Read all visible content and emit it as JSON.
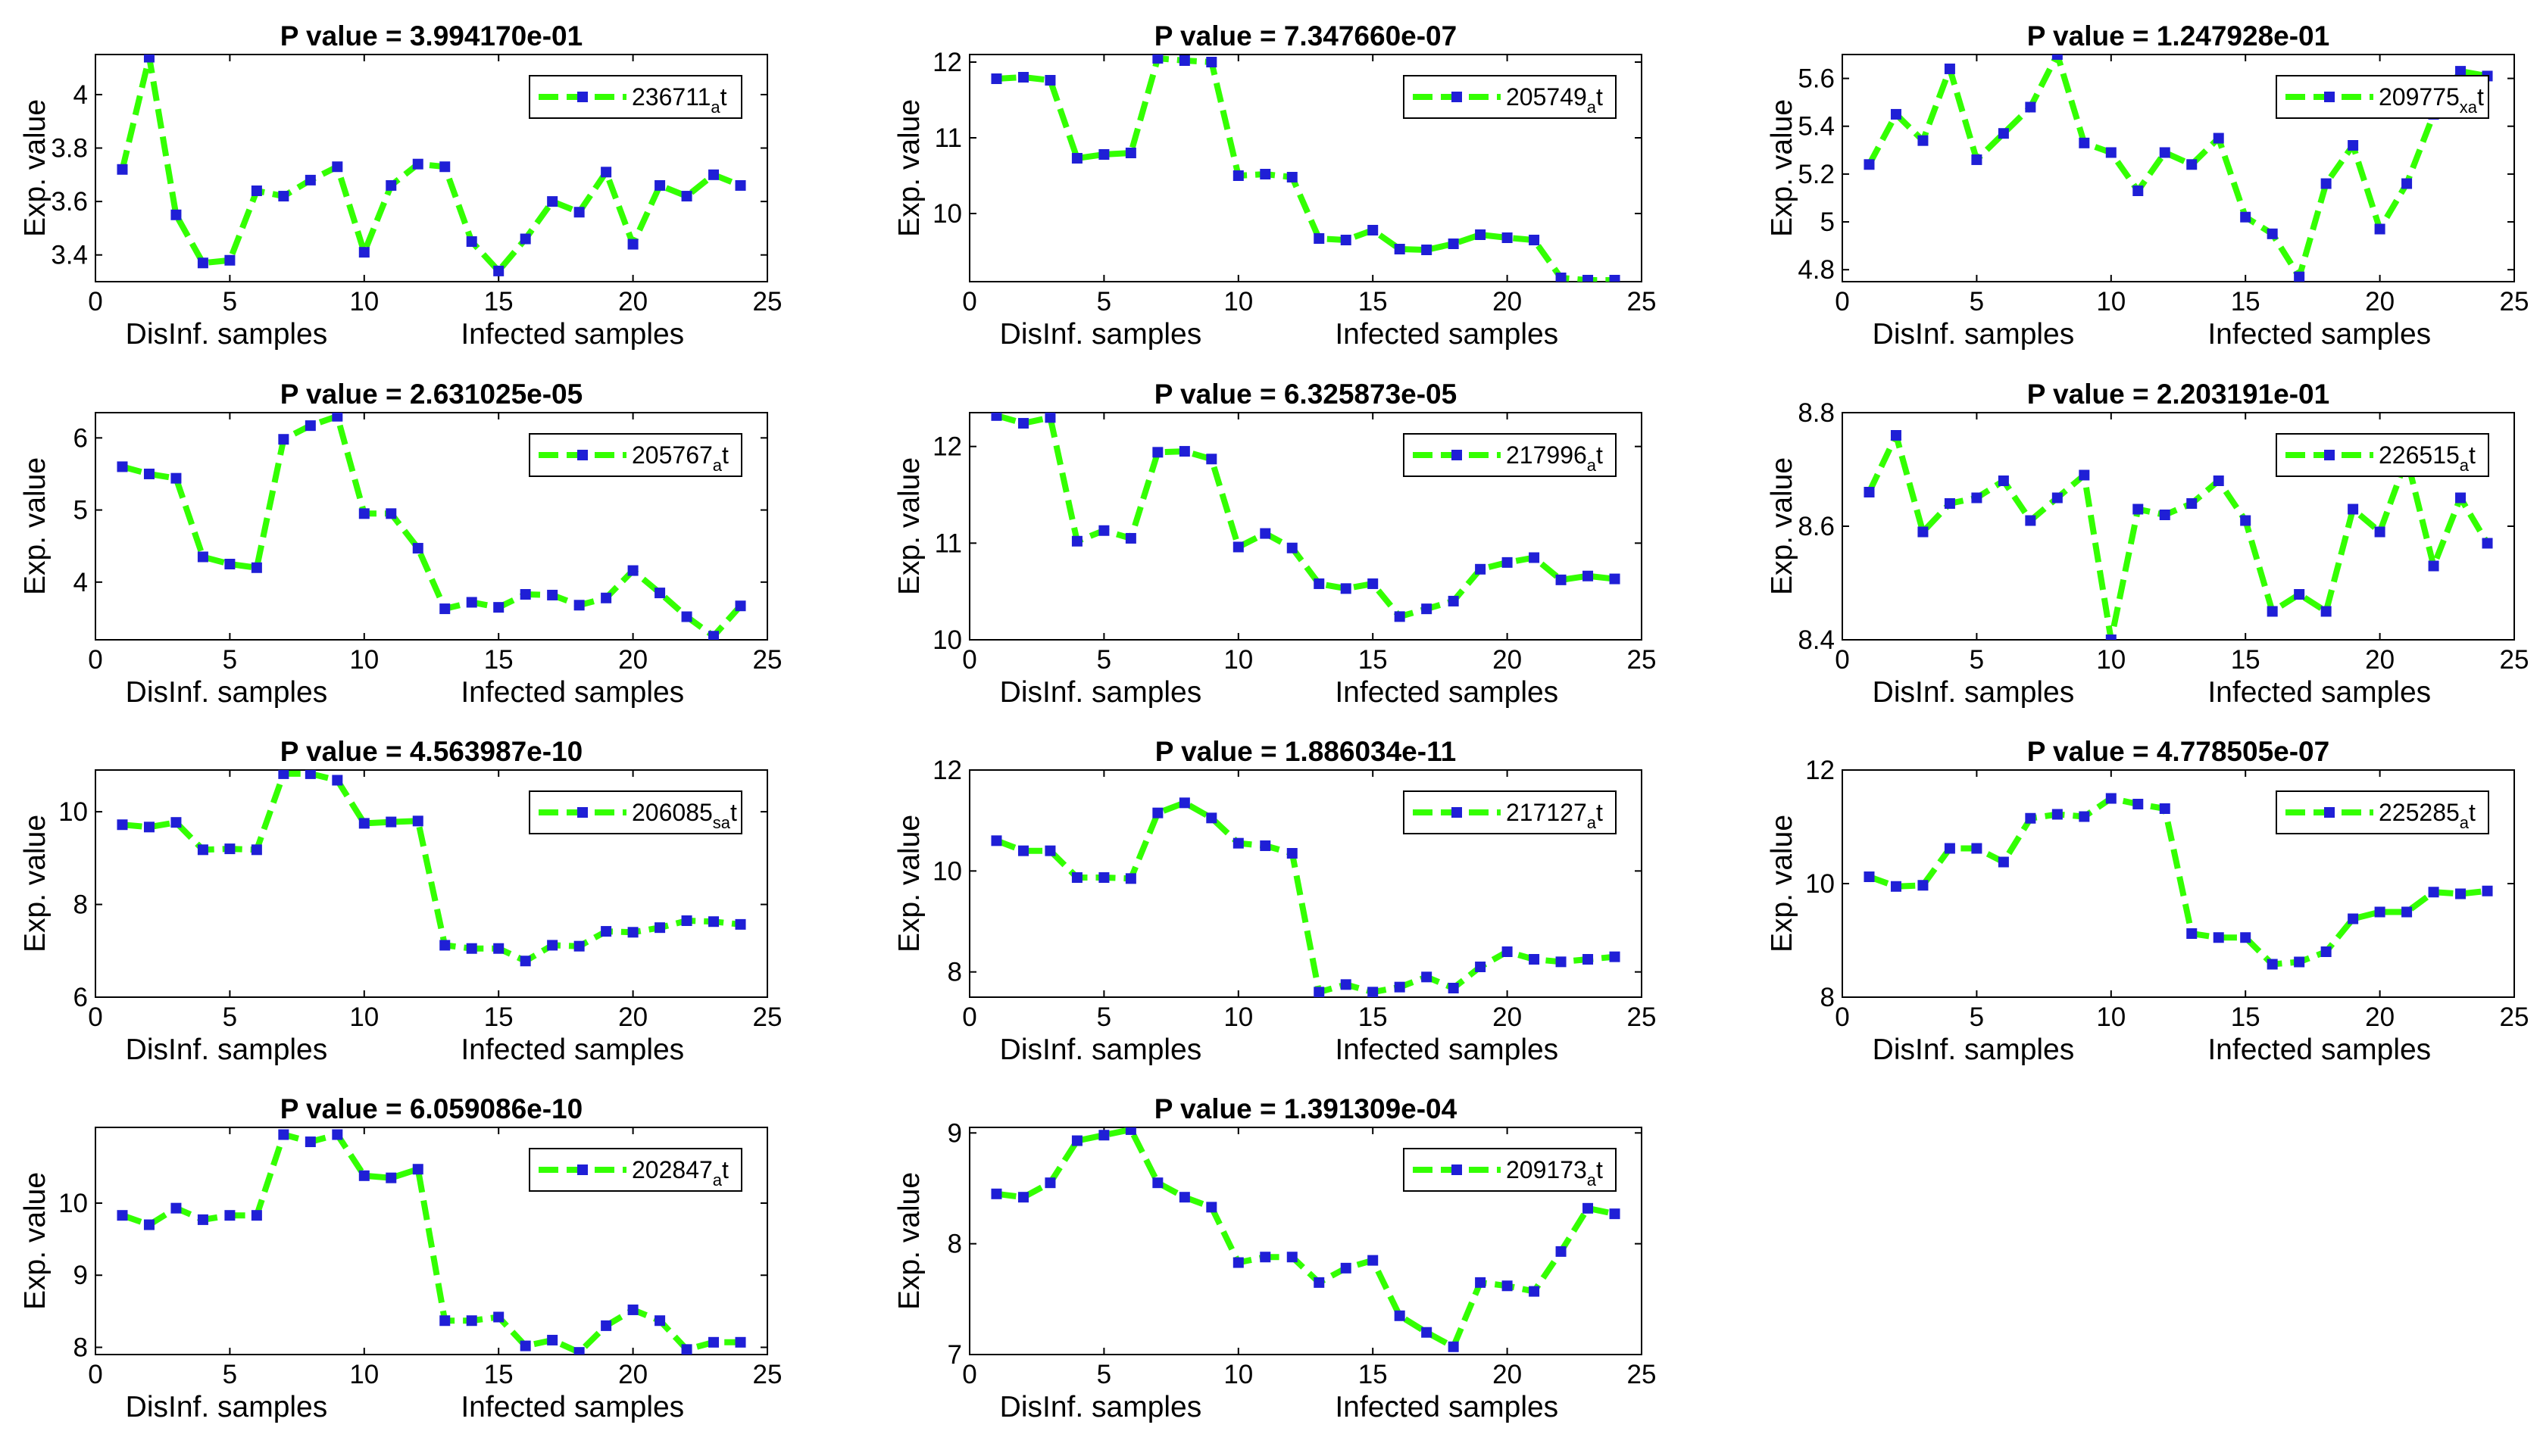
{
  "chart_data": [
    {
      "type": "line",
      "title": "P value = 3.994170e-01",
      "ylabel": "Exp. value",
      "xlabel_left": "DisInf. samples",
      "xlabel_right": "Infected samples",
      "xlim": [
        0,
        25
      ],
      "xticks": [
        "0",
        "5",
        "10",
        "15",
        "20",
        "25"
      ],
      "ylim": [
        3.3,
        4.15
      ],
      "yticks": [
        "3.4",
        "3.6",
        "3.8",
        "4"
      ],
      "legend": {
        "base": "236711",
        "sub": "a",
        "suffix": "t"
      },
      "x": [
        1,
        2,
        3,
        4,
        5,
        6,
        7,
        8,
        9,
        10,
        11,
        12,
        13,
        14,
        15,
        16,
        17,
        18,
        19,
        20,
        21,
        22,
        23,
        24
      ],
      "values": [
        3.72,
        4.14,
        3.55,
        3.37,
        3.38,
        3.64,
        3.62,
        3.68,
        3.73,
        3.41,
        3.66,
        3.74,
        3.73,
        3.45,
        3.34,
        3.46,
        3.6,
        3.56,
        3.71,
        3.44,
        3.66,
        3.62,
        3.7,
        3.66
      ]
    },
    {
      "type": "line",
      "title": "P value = 7.347660e-07",
      "ylabel": "Exp. value",
      "xlabel_left": "DisInf. samples",
      "xlabel_right": "Infected samples",
      "xlim": [
        0,
        25
      ],
      "xticks": [
        "0",
        "5",
        "10",
        "15",
        "20",
        "25"
      ],
      "ylim": [
        9.1,
        12.1
      ],
      "yticks": [
        "10",
        "11",
        "12"
      ],
      "legend": {
        "base": "205749",
        "sub": "a",
        "suffix": "t"
      },
      "x": [
        1,
        2,
        3,
        4,
        5,
        6,
        7,
        8,
        9,
        10,
        11,
        12,
        13,
        14,
        15,
        16,
        17,
        18,
        19,
        20,
        21,
        22,
        23,
        24
      ],
      "values": [
        11.78,
        11.8,
        11.76,
        10.73,
        10.78,
        10.8,
        12.05,
        12.02,
        12.0,
        10.5,
        10.52,
        10.48,
        9.67,
        9.65,
        9.78,
        9.53,
        9.52,
        9.6,
        9.72,
        9.68,
        9.65,
        9.15,
        9.12,
        9.12
      ]
    },
    {
      "type": "line",
      "title": "P value = 1.247928e-01",
      "ylabel": "Exp. value",
      "xlabel_left": "DisInf. samples",
      "xlabel_right": "Infected samples",
      "xlim": [
        0,
        25
      ],
      "xticks": [
        "0",
        "5",
        "10",
        "15",
        "20",
        "25"
      ],
      "ylim": [
        4.75,
        5.7
      ],
      "yticks": [
        "4.8",
        "5",
        "5.2",
        "5.4",
        "5.6"
      ],
      "legend": {
        "base": "209775",
        "sub": "xa",
        "suffix": "t"
      },
      "x": [
        1,
        2,
        3,
        4,
        5,
        6,
        7,
        8,
        9,
        10,
        11,
        12,
        13,
        14,
        15,
        16,
        17,
        18,
        19,
        20,
        21,
        22,
        23,
        24
      ],
      "values": [
        5.24,
        5.45,
        5.34,
        5.64,
        5.26,
        5.37,
        5.48,
        5.7,
        5.33,
        5.29,
        5.13,
        5.29,
        5.24,
        5.35,
        5.02,
        4.95,
        4.77,
        5.16,
        5.32,
        4.97,
        5.16,
        5.45,
        5.63,
        5.61
      ]
    },
    {
      "type": "line",
      "title": "P value = 2.631025e-05",
      "ylabel": "Exp. value",
      "xlabel_left": "DisInf. samples",
      "xlabel_right": "Infected samples",
      "xlim": [
        0,
        25
      ],
      "xticks": [
        "0",
        "5",
        "10",
        "15",
        "20",
        "25"
      ],
      "ylim": [
        3.2,
        6.35
      ],
      "yticks": [
        "4",
        "5",
        "6"
      ],
      "legend": {
        "base": "205767",
        "sub": "a",
        "suffix": "t"
      },
      "x": [
        1,
        2,
        3,
        4,
        5,
        6,
        7,
        8,
        9,
        10,
        11,
        12,
        13,
        14,
        15,
        16,
        17,
        18,
        19,
        20,
        21,
        22,
        23,
        24
      ],
      "values": [
        5.6,
        5.5,
        5.44,
        4.35,
        4.25,
        4.2,
        5.98,
        6.17,
        6.3,
        4.95,
        4.95,
        4.47,
        3.63,
        3.72,
        3.65,
        3.83,
        3.82,
        3.68,
        3.78,
        4.16,
        3.85,
        3.52,
        3.25,
        3.67
      ]
    },
    {
      "type": "line",
      "title": "P value = 6.325873e-05",
      "ylabel": "Exp. value",
      "xlabel_left": "DisInf. samples",
      "xlabel_right": "Infected samples",
      "xlim": [
        0,
        25
      ],
      "xticks": [
        "0",
        "5",
        "10",
        "15",
        "20",
        "25"
      ],
      "ylim": [
        10,
        12.35
      ],
      "yticks": [
        "10",
        "11",
        "12"
      ],
      "legend": {
        "base": "217996",
        "sub": "a",
        "suffix": "t"
      },
      "x": [
        1,
        2,
        3,
        4,
        5,
        6,
        7,
        8,
        9,
        10,
        11,
        12,
        13,
        14,
        15,
        16,
        17,
        18,
        19,
        20,
        21,
        22,
        23,
        24
      ],
      "values": [
        12.32,
        12.24,
        12.3,
        11.02,
        11.13,
        11.05,
        11.94,
        11.95,
        11.87,
        10.96,
        11.1,
        10.95,
        10.58,
        10.53,
        10.58,
        10.24,
        10.32,
        10.4,
        10.73,
        10.8,
        10.85,
        10.62,
        10.66,
        10.63
      ]
    },
    {
      "type": "line",
      "title": "P value = 2.203191e-01",
      "ylabel": "Exp. value",
      "xlabel_left": "DisInf. samples",
      "xlabel_right": "Infected samples",
      "xlim": [
        0,
        25
      ],
      "xticks": [
        "0",
        "5",
        "10",
        "15",
        "20",
        "25"
      ],
      "ylim": [
        8.4,
        8.8
      ],
      "yticks": [
        "8.4",
        "8.6",
        "8.8"
      ],
      "legend": {
        "base": "226515",
        "sub": "a",
        "suffix": "t"
      },
      "x": [
        1,
        2,
        3,
        4,
        5,
        6,
        7,
        8,
        9,
        10,
        11,
        12,
        13,
        14,
        15,
        16,
        17,
        18,
        19,
        20,
        21,
        22,
        23,
        24
      ],
      "values": [
        8.66,
        8.76,
        8.59,
        8.64,
        8.65,
        8.68,
        8.61,
        8.65,
        8.69,
        8.4,
        8.63,
        8.62,
        8.64,
        8.68,
        8.61,
        8.45,
        8.48,
        8.45,
        8.63,
        8.59,
        8.72,
        8.53,
        8.65,
        8.57
      ]
    },
    {
      "type": "line",
      "title": "P value = 4.563987e-10",
      "ylabel": "Exp. value",
      "xlabel_left": "DisInf. samples",
      "xlabel_right": "Infected samples",
      "xlim": [
        0,
        25
      ],
      "xticks": [
        "0",
        "5",
        "10",
        "15",
        "20",
        "25"
      ],
      "ylim": [
        6,
        10.9
      ],
      "yticks": [
        "6",
        "8",
        "10"
      ],
      "legend": {
        "base": "206085",
        "sub": "sa",
        "suffix": "t"
      },
      "x": [
        1,
        2,
        3,
        4,
        5,
        6,
        7,
        8,
        9,
        10,
        11,
        12,
        13,
        14,
        15,
        16,
        17,
        18,
        19,
        20,
        21,
        22,
        23,
        24
      ],
      "values": [
        9.72,
        9.67,
        9.77,
        9.18,
        9.2,
        9.18,
        10.82,
        10.82,
        10.68,
        9.75,
        9.78,
        9.8,
        7.12,
        7.05,
        7.05,
        6.78,
        7.12,
        7.1,
        7.42,
        7.4,
        7.5,
        7.65,
        7.63,
        7.57
      ]
    },
    {
      "type": "line",
      "title": "P value = 1.886034e-11",
      "ylabel": "Exp. value",
      "xlabel_left": "DisInf. samples",
      "xlabel_right": "Infected samples",
      "xlim": [
        0,
        25
      ],
      "xticks": [
        "0",
        "5",
        "10",
        "15",
        "20",
        "25"
      ],
      "ylim": [
        7.5,
        12
      ],
      "yticks": [
        "8",
        "10",
        "12"
      ],
      "legend": {
        "base": "217127",
        "sub": "a",
        "suffix": "t"
      },
      "x": [
        1,
        2,
        3,
        4,
        5,
        6,
        7,
        8,
        9,
        10,
        11,
        12,
        13,
        14,
        15,
        16,
        17,
        18,
        19,
        20,
        21,
        22,
        23,
        24
      ],
      "values": [
        10.6,
        10.4,
        10.4,
        9.87,
        9.87,
        9.85,
        11.15,
        11.35,
        11.05,
        10.55,
        10.5,
        10.35,
        7.6,
        7.75,
        7.6,
        7.7,
        7.9,
        7.68,
        8.1,
        8.4,
        8.25,
        8.2,
        8.25,
        8.3
      ]
    },
    {
      "type": "line",
      "title": "P value = 4.778505e-07",
      "ylabel": "Exp. value",
      "xlabel_left": "DisInf. samples",
      "xlabel_right": "Infected samples",
      "xlim": [
        0,
        25
      ],
      "xticks": [
        "0",
        "5",
        "10",
        "15",
        "20",
        "25"
      ],
      "ylim": [
        8,
        12
      ],
      "yticks": [
        "8",
        "10",
        "12"
      ],
      "legend": {
        "base": "225285",
        "sub": "a",
        "suffix": "t"
      },
      "x": [
        1,
        2,
        3,
        4,
        5,
        6,
        7,
        8,
        9,
        10,
        11,
        12,
        13,
        14,
        15,
        16,
        17,
        18,
        19,
        20,
        21,
        22,
        23,
        24
      ],
      "values": [
        10.12,
        9.95,
        9.97,
        10.62,
        10.62,
        10.38,
        11.15,
        11.22,
        11.18,
        11.5,
        11.4,
        11.32,
        9.12,
        9.05,
        9.05,
        8.58,
        8.62,
        8.8,
        9.38,
        9.5,
        9.5,
        9.85,
        9.82,
        9.87
      ]
    },
    {
      "type": "line",
      "title": "P value = 6.059086e-10",
      "ylabel": "Exp. value",
      "xlabel_left": "DisInf. samples",
      "xlabel_right": "Infected samples",
      "xlim": [
        0,
        25
      ],
      "xticks": [
        "0",
        "5",
        "10",
        "15",
        "20",
        "25"
      ],
      "ylim": [
        7.9,
        11.05
      ],
      "yticks": [
        "8",
        "9",
        "10"
      ],
      "legend": {
        "base": "202847",
        "sub": "a",
        "suffix": "t"
      },
      "x": [
        1,
        2,
        3,
        4,
        5,
        6,
        7,
        8,
        9,
        10,
        11,
        12,
        13,
        14,
        15,
        16,
        17,
        18,
        19,
        20,
        21,
        22,
        23,
        24
      ],
      "values": [
        9.83,
        9.7,
        9.93,
        9.77,
        9.83,
        9.83,
        10.95,
        10.85,
        10.95,
        10.38,
        10.35,
        10.47,
        8.37,
        8.37,
        8.42,
        8.02,
        8.1,
        7.93,
        8.3,
        8.52,
        8.37,
        7.97,
        8.07,
        8.07
      ]
    },
    {
      "type": "line",
      "title": "P value = 1.391309e-04",
      "ylabel": "Exp. value",
      "xlabel_left": "DisInf. samples",
      "xlabel_right": "Infected samples",
      "xlim": [
        0,
        25
      ],
      "xticks": [
        "0",
        "5",
        "10",
        "15",
        "20",
        "25"
      ],
      "ylim": [
        7,
        9.05
      ],
      "yticks": [
        "7",
        "8",
        "9"
      ],
      "legend": {
        "base": "209173",
        "sub": "a",
        "suffix": "t"
      },
      "x": [
        1,
        2,
        3,
        4,
        5,
        6,
        7,
        8,
        9,
        10,
        11,
        12,
        13,
        14,
        15,
        16,
        17,
        18,
        19,
        20,
        21,
        22,
        23,
        24
      ],
      "values": [
        8.45,
        8.42,
        8.55,
        8.93,
        8.98,
        9.03,
        8.55,
        8.42,
        8.33,
        7.83,
        7.88,
        7.88,
        7.65,
        7.78,
        7.85,
        7.35,
        7.2,
        7.07,
        7.65,
        7.62,
        7.57,
        7.93,
        8.32,
        8.27
      ]
    }
  ],
  "colors": {
    "line": "#33ff00",
    "marker": "#1f1fd6",
    "axes": "#000000",
    "background": "#ffffff"
  }
}
